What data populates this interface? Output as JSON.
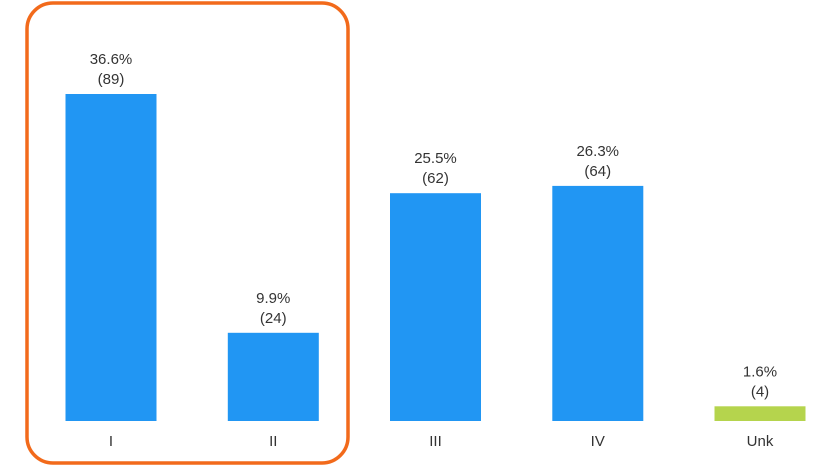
{
  "chart_data": {
    "type": "bar",
    "categories": [
      "I",
      "II",
      "III",
      "IV",
      "Unk"
    ],
    "values": [
      89,
      24,
      62,
      64,
      4
    ],
    "percent_labels": [
      "36.6%",
      "9.9%",
      "25.5%",
      "26.3%",
      "1.6%"
    ],
    "count_labels": [
      "(89)",
      "(24)",
      "(62)",
      "(64)",
      "(4)"
    ],
    "colors": [
      "#2196f3",
      "#2196f3",
      "#2196f3",
      "#2196f3",
      "#b5d44d"
    ],
    "highlight": {
      "categories": [
        "I",
        "II"
      ],
      "color": "#f26a1b"
    },
    "ylim": [
      0,
      89
    ],
    "title": "",
    "xlabel": "",
    "ylabel": "",
    "grid": false,
    "legend": "none"
  }
}
